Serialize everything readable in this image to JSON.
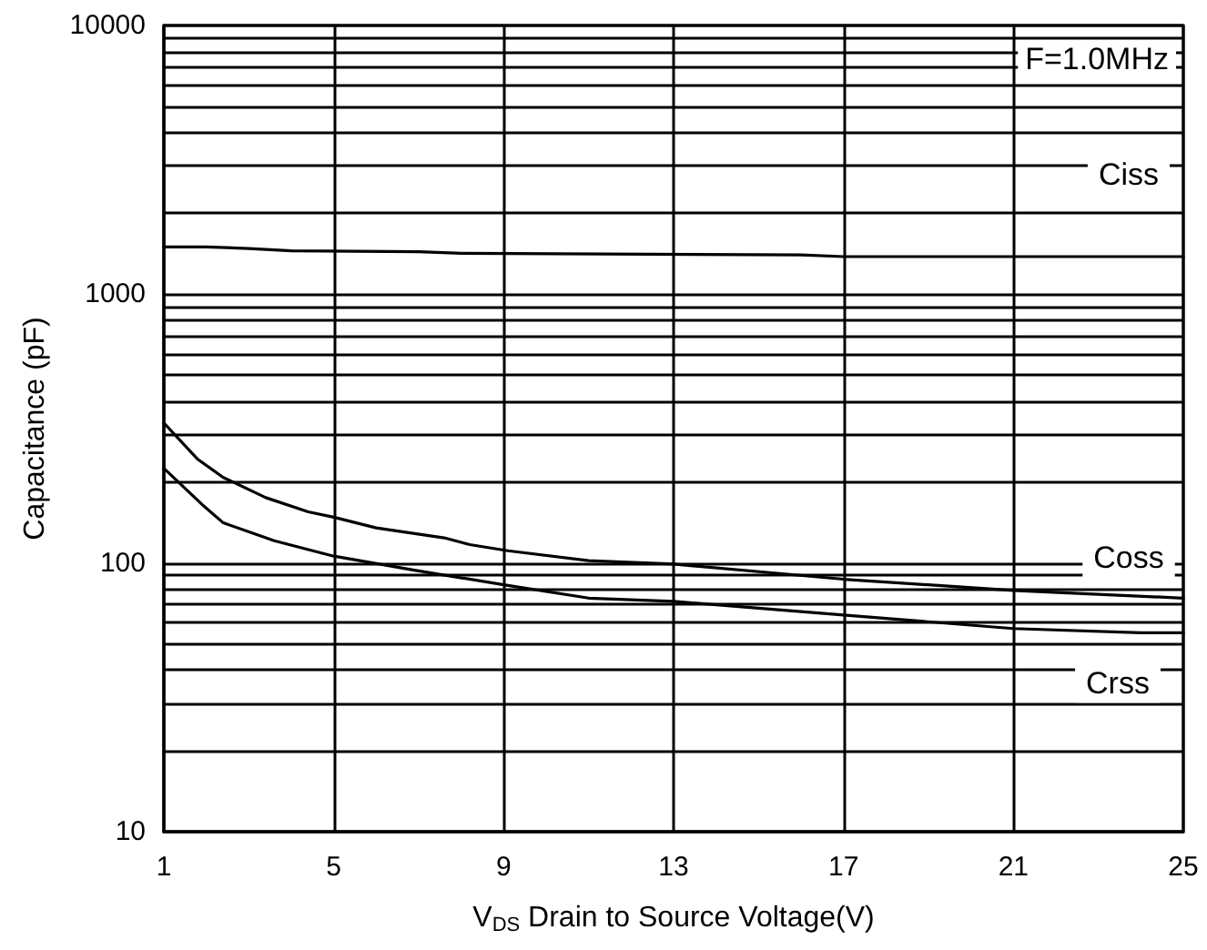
{
  "chart_data": {
    "type": "line",
    "xlabel": "V$_{DS}$ Drain to Source Voltage(V)",
    "ylabel": "Capacitance (pF)",
    "annotations": [
      "F=1.0MHz"
    ],
    "xlim": [
      1,
      25
    ],
    "xticks": [
      1,
      5,
      9,
      13,
      17,
      21,
      25
    ],
    "ylim": [
      10,
      10000
    ],
    "log": "y",
    "yticks": [
      10,
      {
        "value": 20,
        "label": null
      },
      {
        "value": 30,
        "label": null
      },
      {
        "value": 40,
        "label": null
      },
      {
        "value": 50,
        "label": null
      },
      {
        "value": 60,
        "label": null
      },
      {
        "value": 70,
        "label": null
      },
      {
        "value": 80,
        "label": null
      },
      {
        "value": 90,
        "label": null
      },
      100,
      {
        "value": 200,
        "label": null
      },
      {
        "value": 300,
        "label": null
      },
      {
        "value": 400,
        "label": null
      },
      {
        "value": 500,
        "label": null
      },
      {
        "value": 600,
        "label": null
      },
      {
        "value": 700,
        "label": null
      },
      {
        "value": 800,
        "label": null
      },
      {
        "value": 900,
        "label": null
      },
      1000,
      {
        "value": 2000,
        "label": null
      },
      {
        "value": 3000,
        "label": null
      },
      {
        "value": 4000,
        "label": null
      },
      {
        "value": 5000,
        "label": null
      },
      {
        "value": 6000,
        "label": null
      },
      {
        "value": 7000,
        "label": null
      },
      {
        "value": 8000,
        "label": null
      },
      {
        "value": 9000,
        "label": null
      },
      10000
    ],
    "grid": true,
    "legend": false,
    "marker": "none",
    "line_style": "solid",
    "series": [
      {
        "name": "Ciss",
        "color": "#000000",
        "x": [
          1,
          2,
          3,
          4,
          7,
          8,
          16,
          17,
          25
        ],
        "values": [
          1500,
          1500,
          1480,
          1450,
          1440,
          1420,
          1400,
          1380,
          1380
        ]
      },
      {
        "name": "Coss",
        "color": "#000000",
        "x": [
          1,
          1.8,
          2.4,
          3.4,
          4.4,
          5,
          6,
          7.6,
          8.2,
          9.1,
          11,
          13,
          17,
          21,
          25
        ],
        "values": [
          332,
          243,
          208,
          175,
          155,
          148,
          135,
          124,
          117,
          111,
          102,
          99,
          87,
          79,
          74
        ]
      },
      {
        "name": "Crss",
        "color": "#000000",
        "x": [
          1,
          1.9,
          2.4,
          3.6,
          5,
          6.9,
          9,
          11,
          13,
          17,
          21,
          24,
          25
        ],
        "values": [
          225,
          165,
          141,
          121,
          106,
          94,
          83,
          74,
          72,
          64,
          57,
          55,
          55
        ]
      }
    ]
  }
}
